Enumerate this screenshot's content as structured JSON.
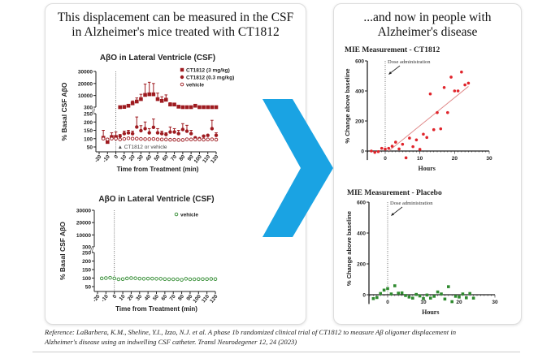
{
  "left_panel": {
    "heading_line1": "This displacement can be measured in the CSF",
    "heading_line2": "in Alzheimer's mice treated with CT1812"
  },
  "right_panel": {
    "heading_line1": "...and now in people with",
    "heading_line2": "Alzheimer's disease"
  },
  "reference": {
    "line1": "Reference: LaBarbera, K.M., Sheline, Y.I., Izzo, N.J. et al. A phase 1b randomized clinical trial of CT1812 to measure Aβ oligomer displacement in",
    "line2": "Alzheimer's disease using an indwelling CSF catheter. Transl Neurodegener 12, 24 (2023)"
  },
  "colors": {
    "dark_red": "#9e1b20",
    "green": "#2f8a2f",
    "arrow_blue": "#1aa3e3",
    "trend": "#e08a8a",
    "red_point": "#e0242b"
  },
  "arrow": {
    "icon": "right-arrow-icon"
  },
  "chart_data": [
    {
      "type": "scatter",
      "title": "AβO in Lateral Ventricle (CSF)",
      "xlabel": "Time from Treatment (min)",
      "ylabel": "% Basal CSF AβO",
      "xlim": [
        -20,
        120
      ],
      "xticks": [
        "-20",
        "-10",
        "0",
        "10",
        "20",
        "30",
        "40",
        "50",
        "60",
        "70",
        "80",
        "90",
        "100",
        "110",
        "120"
      ],
      "yticks_upper": [
        "300",
        "10000",
        "20000",
        "30000"
      ],
      "yticks_lower": [
        "50",
        "100",
        "150",
        "200",
        "250"
      ],
      "axis_break": [
        250,
        300
      ],
      "annotation": "CT1812 or vehicle",
      "legend_position": "top-right",
      "series": [
        {
          "name": "CT1812 (3 mg/kg)",
          "marker": "square",
          "x": [
            -15,
            -10,
            -5,
            0,
            5,
            10,
            15,
            20,
            25,
            30,
            35,
            40,
            45,
            50,
            55,
            60,
            65,
            70,
            75,
            80,
            85,
            90,
            95,
            100,
            105,
            110,
            115,
            120
          ],
          "y": [
            105,
            80,
            110,
            110,
            300,
            500,
            1500,
            3500,
            5000,
            7000,
            10500,
            11000,
            11000,
            7000,
            5500,
            6500,
            2500,
            2500,
            700,
            300,
            300,
            300,
            1500,
            300,
            300,
            300,
            300,
            300
          ],
          "err": [
            45,
            20,
            25,
            30,
            0,
            0,
            500,
            2000,
            3000,
            4000,
            9000,
            10000,
            9000,
            5000,
            3500,
            4000,
            1500,
            1200,
            0,
            0,
            0,
            0,
            0,
            0,
            0,
            0,
            0,
            0
          ]
        },
        {
          "name": "CT1812 (0.3 mg/kg)",
          "marker": "circle",
          "x": [
            5,
            10,
            15,
            20,
            25,
            30,
            35,
            40,
            45,
            50,
            55,
            60,
            65,
            70,
            75,
            80,
            85,
            90,
            95,
            100,
            105,
            110,
            115,
            120
          ],
          "y": [
            115,
            130,
            135,
            130,
            170,
            148,
            160,
            135,
            168,
            135,
            130,
            125,
            140,
            140,
            130,
            155,
            145,
            130,
            105,
            100,
            115,
            120,
            160,
            120
          ],
          "err": [
            10,
            15,
            15,
            15,
            60,
            30,
            40,
            25,
            50,
            25,
            15,
            10,
            30,
            20,
            20,
            35,
            35,
            20,
            0,
            0,
            0,
            0,
            50,
            15
          ]
        },
        {
          "name": "vehicle",
          "marker": "open-circle",
          "x": [
            -15,
            -10,
            -5,
            0,
            5,
            10,
            15,
            20,
            25,
            30,
            35,
            40,
            45,
            50,
            55,
            60,
            65,
            70,
            75,
            80,
            85,
            90,
            95,
            100,
            105,
            110,
            115,
            120
          ],
          "y": [
            100,
            95,
            100,
            100,
            95,
            98,
            102,
            100,
            100,
            98,
            97,
            97,
            98,
            96,
            95,
            95,
            93,
            93,
            92,
            92,
            96,
            95,
            95,
            95,
            94,
            95,
            96,
            94
          ]
        }
      ]
    },
    {
      "type": "scatter",
      "title": "AβO in Lateral Ventricle (CSF)",
      "xlabel": "Time from Treatment (min)",
      "ylabel": "% Basal CSF AβO",
      "xlim": [
        -20,
        120
      ],
      "xticks": [
        "-20",
        "-10",
        "0",
        "10",
        "20",
        "30",
        "40",
        "50",
        "60",
        "70",
        "80",
        "90",
        "100",
        "110",
        "120"
      ],
      "yticks_upper": [
        "300",
        "10000",
        "20000",
        "30000"
      ],
      "yticks_lower": [
        "50",
        "100",
        "150",
        "200",
        "250"
      ],
      "axis_break": [
        250,
        300
      ],
      "legend_position": "top-right",
      "series": [
        {
          "name": "vehicle",
          "marker": "open-circle",
          "x": [
            -15,
            -10,
            -5,
            0,
            5,
            10,
            15,
            20,
            25,
            30,
            35,
            40,
            45,
            50,
            55,
            60,
            65,
            70,
            75,
            80,
            85,
            90,
            95,
            100,
            105,
            110,
            115,
            120
          ],
          "y": [
            98,
            100,
            102,
            98,
            93,
            94,
            98,
            100,
            99,
            97,
            96,
            97,
            97,
            96,
            96,
            94,
            93,
            93,
            93,
            90,
            96,
            93,
            93,
            94,
            94,
            94,
            95,
            94
          ]
        }
      ]
    },
    {
      "type": "scatter",
      "title": "MIE Measurement - CT1812",
      "xlabel": "Hours",
      "ylabel": "% Change above baseline",
      "xlim": [
        -5,
        30
      ],
      "ylim": [
        -60,
        600
      ],
      "xticks": [
        "0",
        "10",
        "20",
        "30"
      ],
      "yticks": [
        "0",
        "200",
        "400",
        "600"
      ],
      "annotation": "Dose administration",
      "series": [
        {
          "name": "CT1812",
          "marker": "circle",
          "x": [
            -4,
            -3,
            -2,
            -1,
            0,
            1,
            2,
            3,
            4,
            5,
            6,
            7,
            8,
            9,
            10,
            11,
            12,
            13,
            14,
            15,
            16,
            17,
            18,
            19,
            20,
            21,
            22,
            23,
            24
          ],
          "y": [
            0,
            -9,
            -4,
            18,
            13,
            18,
            32,
            59,
            14,
            45,
            -45,
            86,
            29,
            74,
            11,
            112,
            90,
            380,
            142,
            256,
            148,
            423,
            256,
            492,
            400,
            400,
            526,
            440,
            452
          ]
        }
      ],
      "trendline": {
        "x": [
          1,
          24
        ],
        "y": [
          0,
          430
        ]
      }
    },
    {
      "type": "scatter",
      "title": "MIE Measurement - Placebo",
      "xlabel": "Hours",
      "ylabel": "% Change above baseline",
      "xlim": [
        -5,
        30
      ],
      "ylim": [
        -60,
        600
      ],
      "xticks": [
        "0",
        "10",
        "20",
        "30"
      ],
      "yticks": [
        "0",
        "200",
        "400",
        "600"
      ],
      "annotation": "Dose administration",
      "series": [
        {
          "name": "Placebo",
          "marker": "square",
          "x": [
            -4,
            -3,
            -2,
            -1,
            0,
            1,
            2,
            3,
            4,
            5,
            6,
            7,
            8,
            9,
            10,
            11,
            12,
            13,
            14,
            15,
            16,
            17,
            18,
            19,
            20,
            21,
            22,
            23,
            24
          ],
          "y": [
            -25,
            -18,
            8,
            30,
            40,
            5,
            58,
            10,
            12,
            -5,
            -15,
            -22,
            2,
            -8,
            -25,
            -2,
            -22,
            -10,
            18,
            5,
            -28,
            52,
            -45,
            -10,
            -15,
            5,
            -20,
            8,
            -22
          ]
        }
      ]
    }
  ]
}
